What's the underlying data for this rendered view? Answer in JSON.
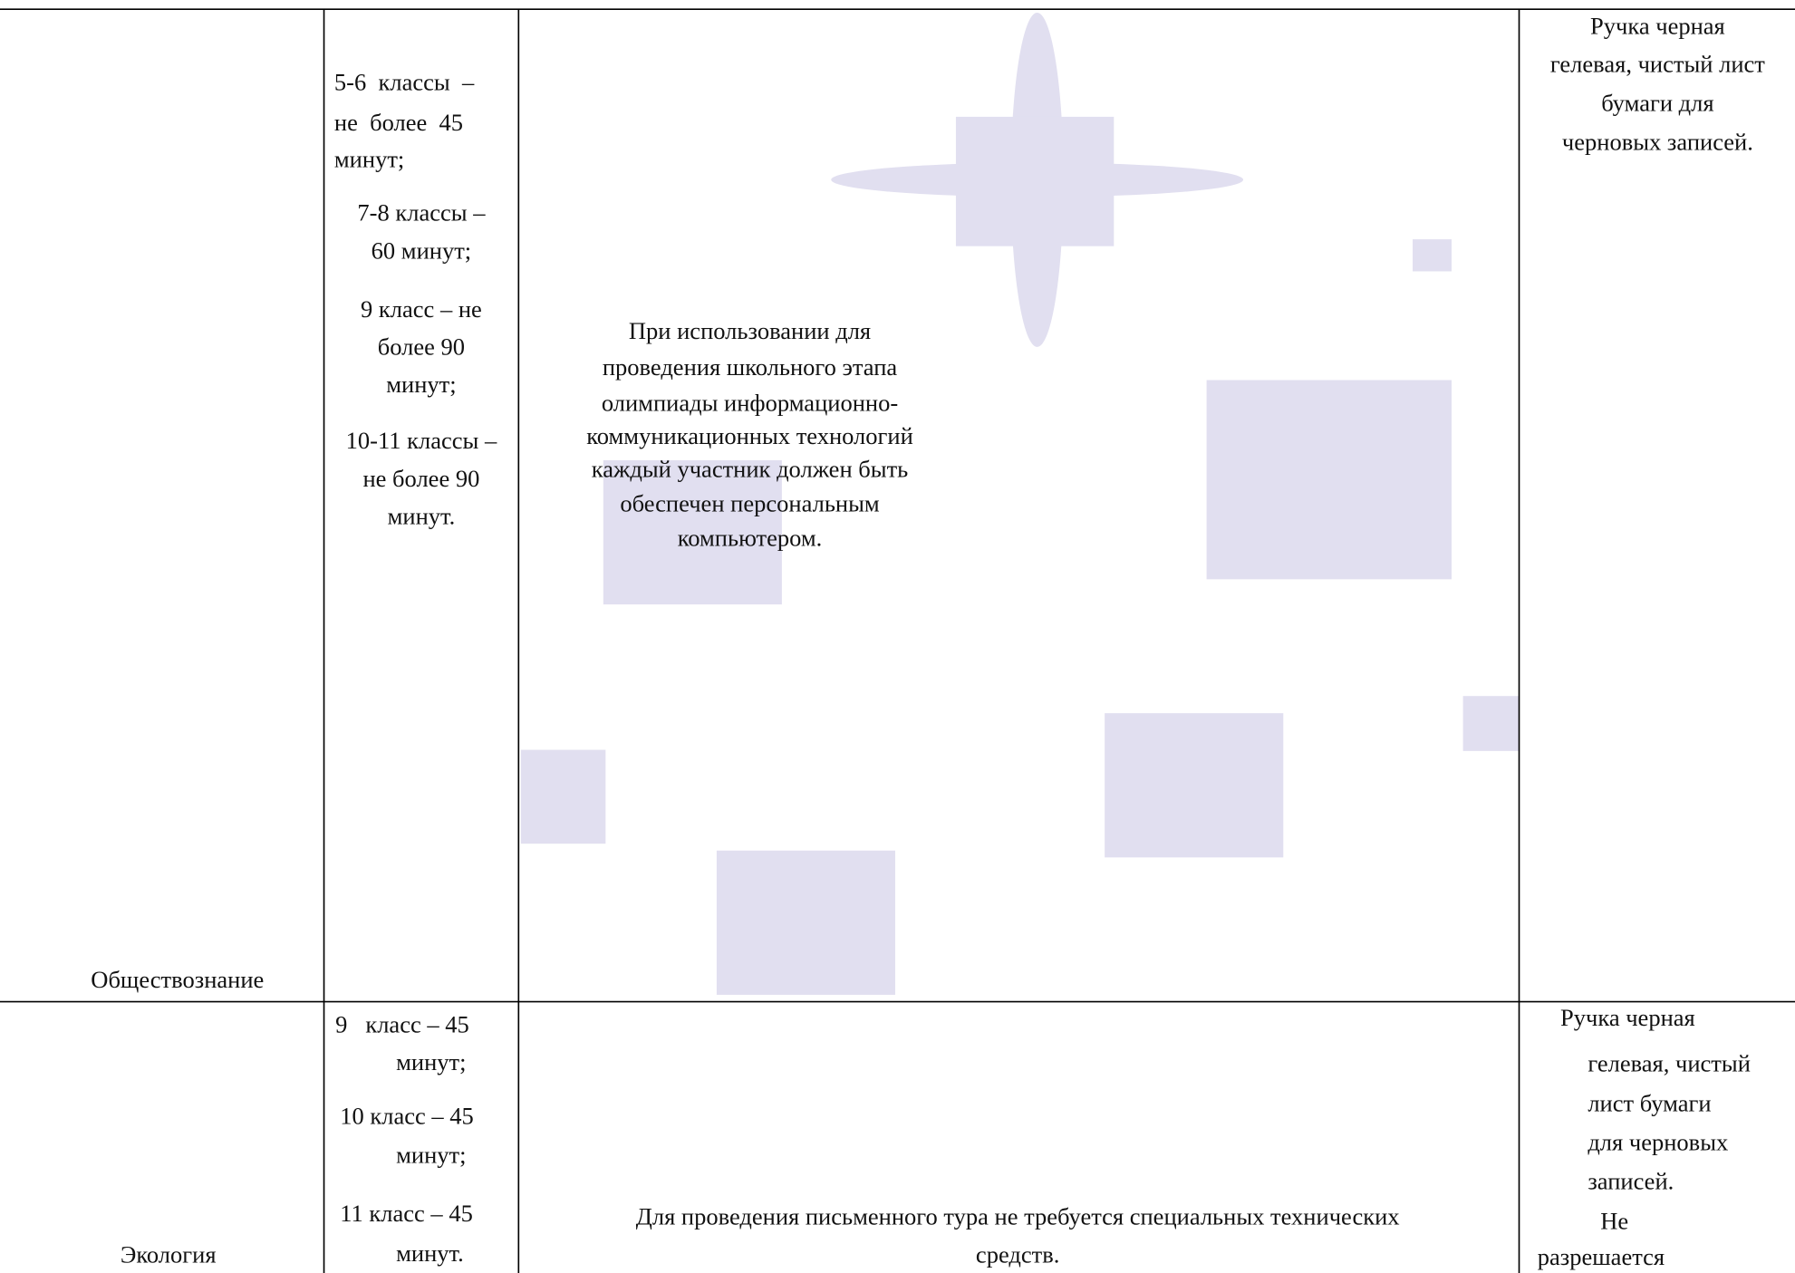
{
  "table": {
    "rows": [
      {
        "subject": "Обществознание",
        "duration": [
          "5-6  классы  –",
          "не  более  45",
          "минут;",
          "7-8 классы –",
          "60 минут;",
          "9 класс – не",
          "более 90",
          "минут;",
          "10-11 классы –",
          "не более 90",
          "минут."
        ],
        "technical": [
          "При использовании для",
          "проведения школьного этапа",
          "олимпиады информационно-",
          "коммуникационных технологий",
          "каждый участник должен быть",
          "обеспечен персональным",
          "компьютером."
        ],
        "materials": [
          "Ручка черная",
          "гелевая, чистый лист",
          "бумаги для",
          "черновых записей."
        ]
      },
      {
        "subject": "Экология",
        "duration": [
          "9   класс – 45",
          "минут;",
          "10 класс – 45",
          "минут;",
          "11 класс – 45",
          "минут."
        ],
        "technical": [
          "Для проведения письменного тура не требуется специальных технических",
          "средств."
        ],
        "materials": [
          "Ручка черная",
          "гелевая, чистый",
          "лист бумаги",
          "для черновых",
          "записей.",
          "Не",
          "разрешается"
        ]
      }
    ]
  }
}
